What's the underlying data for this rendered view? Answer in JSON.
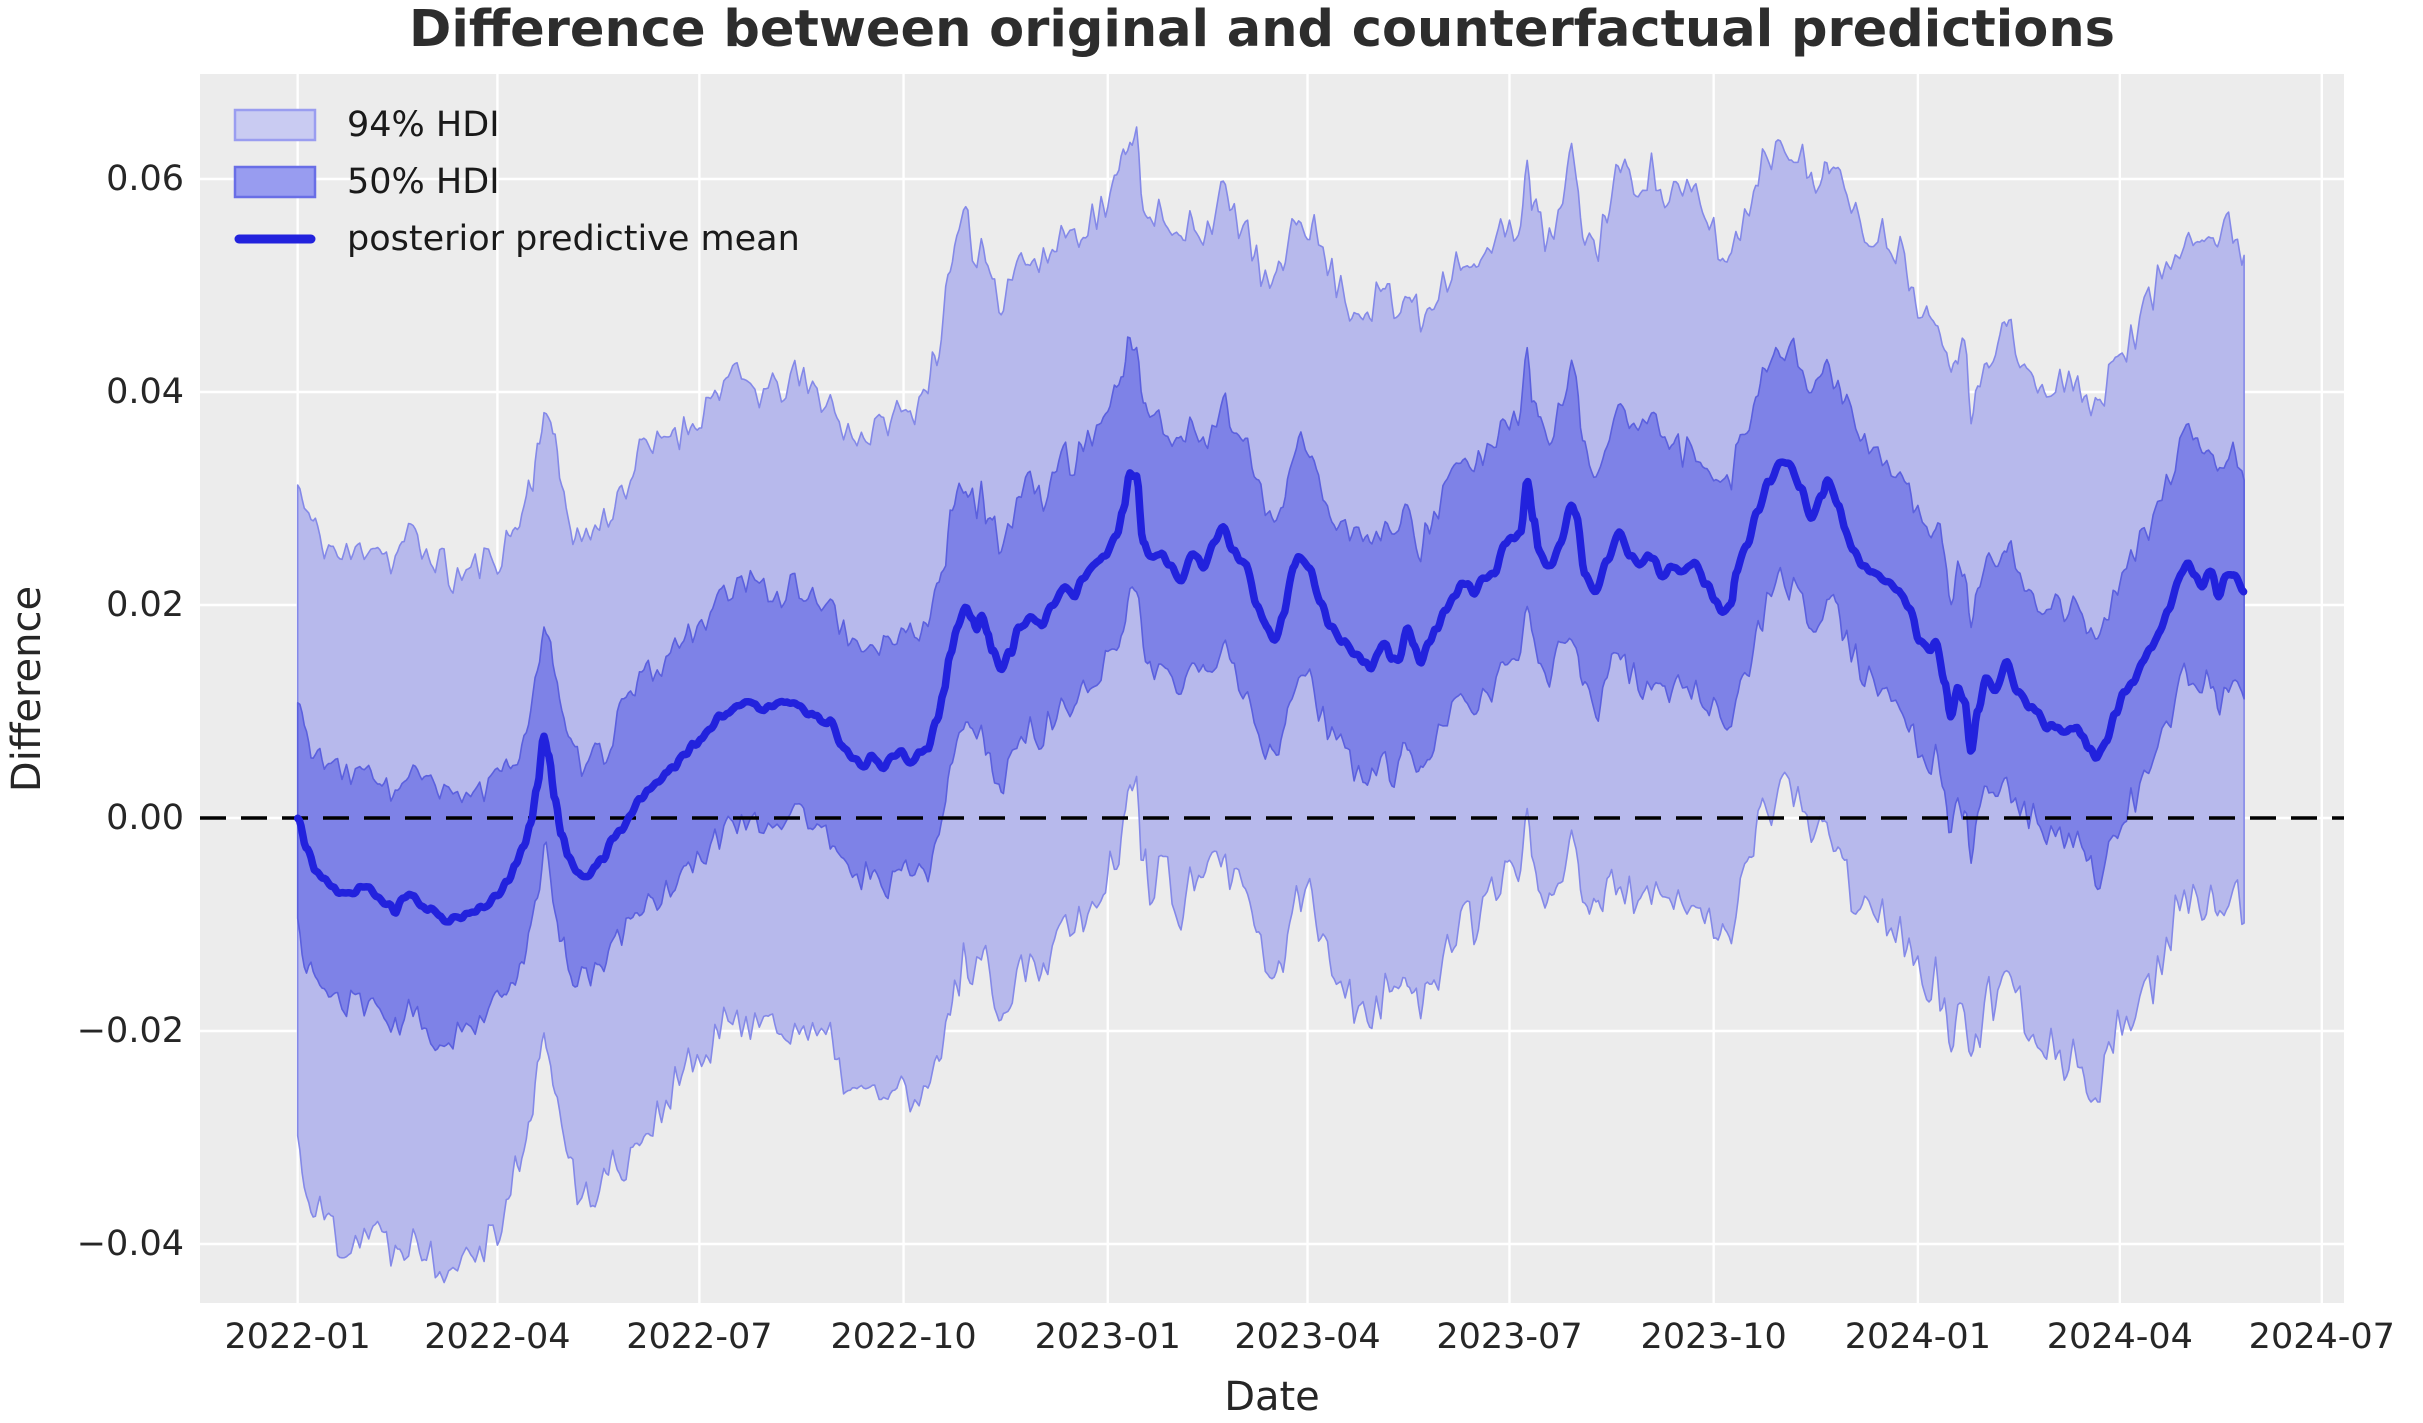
{
  "chart_data": {
    "type": "line",
    "title": "Difference between original and counterfactual predictions",
    "xlabel": "Date",
    "ylabel": "Difference",
    "legend": [
      {
        "label": "94% HDI",
        "type": "patch"
      },
      {
        "label": "50% HDI",
        "type": "patch"
      },
      {
        "label": "posterior predictive mean",
        "type": "line"
      }
    ],
    "legend_position": "upper left",
    "grid": true,
    "x_ticks": [
      {
        "label": "2022-01",
        "date": "2022-01-01"
      },
      {
        "label": "2022-04",
        "date": "2022-04-01"
      },
      {
        "label": "2022-07",
        "date": "2022-07-01"
      },
      {
        "label": "2022-10",
        "date": "2022-10-01"
      },
      {
        "label": "2023-01",
        "date": "2023-01-01"
      },
      {
        "label": "2023-04",
        "date": "2023-04-01"
      },
      {
        "label": "2023-07",
        "date": "2023-07-01"
      },
      {
        "label": "2023-10",
        "date": "2023-10-01"
      },
      {
        "label": "2024-01",
        "date": "2024-01-01"
      },
      {
        "label": "2024-04",
        "date": "2024-04-01"
      },
      {
        "label": "2024-07",
        "date": "2024-07-01"
      }
    ],
    "y_ticks": [
      {
        "label": "0.06",
        "value": 0.06
      },
      {
        "label": "0.04",
        "value": 0.04
      },
      {
        "label": "0.02",
        "value": 0.02
      },
      {
        "label": "0.00",
        "value": 0.0
      },
      {
        "label": "−0.02",
        "value": -0.02
      },
      {
        "label": "−0.04",
        "value": -0.04
      }
    ],
    "epoch": "2022-01-01",
    "data_day_range": [
      0,
      877
    ],
    "xlim_days": [
      -44,
      922
    ],
    "ylim": [
      -0.04554,
      0.06986
    ],
    "zero_line": {
      "y": 0,
      "style": "dashed",
      "color": "#000000"
    },
    "mean_points": [
      [
        0,
        0.0
      ],
      [
        4,
        -0.003
      ],
      [
        8,
        -0.0048
      ],
      [
        12,
        -0.0058
      ],
      [
        16,
        -0.0066
      ],
      [
        20,
        -0.0072
      ],
      [
        24,
        -0.007
      ],
      [
        28,
        -0.0064
      ],
      [
        32,
        -0.0063
      ],
      [
        36,
        -0.0072
      ],
      [
        40,
        -0.008
      ],
      [
        44,
        -0.0087
      ],
      [
        48,
        -0.0075
      ],
      [
        52,
        -0.0072
      ],
      [
        56,
        -0.0082
      ],
      [
        60,
        -0.0087
      ],
      [
        64,
        -0.0092
      ],
      [
        68,
        -0.0096
      ],
      [
        72,
        -0.0093
      ],
      [
        76,
        -0.009
      ],
      [
        80,
        -0.0087
      ],
      [
        85,
        -0.0083
      ],
      [
        90,
        -0.0072
      ],
      [
        94,
        -0.006
      ],
      [
        98,
        -0.0045
      ],
      [
        102,
        -0.0025
      ],
      [
        105,
        -0.0005
      ],
      [
        108,
        0.003
      ],
      [
        111,
        0.0076
      ],
      [
        113,
        0.006
      ],
      [
        116,
        0.002
      ],
      [
        119,
        -0.0015
      ],
      [
        122,
        -0.0037
      ],
      [
        126,
        -0.005
      ],
      [
        130,
        -0.0054
      ],
      [
        134,
        -0.0045
      ],
      [
        138,
        -0.0037
      ],
      [
        142,
        -0.002
      ],
      [
        146,
        -0.0008
      ],
      [
        150,
        0.0002
      ],
      [
        154,
        0.0015
      ],
      [
        158,
        0.0027
      ],
      [
        162,
        0.0033
      ],
      [
        166,
        0.004
      ],
      [
        170,
        0.0048
      ],
      [
        174,
        0.0056
      ],
      [
        178,
        0.0068
      ],
      [
        182,
        0.0076
      ],
      [
        186,
        0.0082
      ],
      [
        190,
        0.0094
      ],
      [
        194,
        0.01
      ],
      [
        198,
        0.0104
      ],
      [
        202,
        0.0107
      ],
      [
        206,
        0.0106
      ],
      [
        210,
        0.0104
      ],
      [
        214,
        0.0106
      ],
      [
        218,
        0.0108
      ],
      [
        222,
        0.011
      ],
      [
        226,
        0.0108
      ],
      [
        230,
        0.01
      ],
      [
        234,
        0.0094
      ],
      [
        240,
        0.0088
      ],
      [
        245,
        0.0068
      ],
      [
        250,
        0.0055
      ],
      [
        255,
        0.005
      ],
      [
        259,
        0.006
      ],
      [
        264,
        0.0046
      ],
      [
        268,
        0.0055
      ],
      [
        272,
        0.0062
      ],
      [
        276,
        0.0052
      ],
      [
        280,
        0.0058
      ],
      [
        284,
        0.0066
      ],
      [
        288,
        0.009
      ],
      [
        291,
        0.012
      ],
      [
        294,
        0.0155
      ],
      [
        297,
        0.018
      ],
      [
        301,
        0.0199
      ],
      [
        304,
        0.0185
      ],
      [
        306,
        0.0178
      ],
      [
        308,
        0.0192
      ],
      [
        311,
        0.0172
      ],
      [
        313,
        0.0155
      ],
      [
        317,
        0.0136
      ],
      [
        321,
        0.0155
      ],
      [
        325,
        0.0178
      ],
      [
        330,
        0.019
      ],
      [
        335,
        0.018
      ],
      [
        340,
        0.0199
      ],
      [
        345,
        0.0214
      ],
      [
        350,
        0.0208
      ],
      [
        354,
        0.0225
      ],
      [
        359,
        0.0237
      ],
      [
        364,
        0.0249
      ],
      [
        369,
        0.0266
      ],
      [
        372,
        0.029
      ],
      [
        375,
        0.0325
      ],
      [
        378,
        0.0318
      ],
      [
        381,
        0.026
      ],
      [
        384,
        0.0245
      ],
      [
        388,
        0.0249
      ],
      [
        393,
        0.0237
      ],
      [
        398,
        0.0225
      ],
      [
        403,
        0.0249
      ],
      [
        408,
        0.0237
      ],
      [
        413,
        0.026
      ],
      [
        417,
        0.0272
      ],
      [
        422,
        0.0249
      ],
      [
        427,
        0.0237
      ],
      [
        432,
        0.0202
      ],
      [
        437,
        0.0178
      ],
      [
        440,
        0.0168
      ],
      [
        444,
        0.019
      ],
      [
        449,
        0.0237
      ],
      [
        451,
        0.0246
      ],
      [
        456,
        0.0237
      ],
      [
        461,
        0.0202
      ],
      [
        466,
        0.0178
      ],
      [
        471,
        0.0166
      ],
      [
        476,
        0.0152
      ],
      [
        480,
        0.0148
      ],
      [
        483,
        0.014
      ],
      [
        487,
        0.0155
      ],
      [
        490,
        0.0166
      ],
      [
        493,
        0.015
      ],
      [
        496,
        0.0148
      ],
      [
        500,
        0.0178
      ],
      [
        503,
        0.0161
      ],
      [
        506,
        0.0146
      ],
      [
        510,
        0.0165
      ],
      [
        513,
        0.0178
      ],
      [
        517,
        0.0196
      ],
      [
        521,
        0.021
      ],
      [
        526,
        0.0219
      ],
      [
        530,
        0.021
      ],
      [
        534,
        0.0225
      ],
      [
        539,
        0.023
      ],
      [
        544,
        0.0254
      ],
      [
        548,
        0.0262
      ],
      [
        551,
        0.0268
      ],
      [
        554,
        0.0318
      ],
      [
        557,
        0.028
      ],
      [
        559,
        0.0254
      ],
      [
        564,
        0.0237
      ],
      [
        569,
        0.026
      ],
      [
        574,
        0.0295
      ],
      [
        576,
        0.0283
      ],
      [
        580,
        0.023
      ],
      [
        585,
        0.0213
      ],
      [
        590,
        0.0242
      ],
      [
        595,
        0.0268
      ],
      [
        600,
        0.0249
      ],
      [
        605,
        0.0237
      ],
      [
        610,
        0.0246
      ],
      [
        615,
        0.023
      ],
      [
        620,
        0.0239
      ],
      [
        624,
        0.023
      ],
      [
        629,
        0.0237
      ],
      [
        634,
        0.0222
      ],
      [
        639,
        0.0207
      ],
      [
        642,
        0.0193
      ],
      [
        646,
        0.02
      ],
      [
        648,
        0.023
      ],
      [
        653,
        0.0254
      ],
      [
        658,
        0.0289
      ],
      [
        663,
        0.0316
      ],
      [
        668,
        0.0335
      ],
      [
        673,
        0.033
      ],
      [
        677,
        0.0307
      ],
      [
        682,
        0.0283
      ],
      [
        687,
        0.0301
      ],
      [
        689,
        0.0316
      ],
      [
        694,
        0.0295
      ],
      [
        697,
        0.0272
      ],
      [
        701,
        0.0254
      ],
      [
        706,
        0.0237
      ],
      [
        711,
        0.023
      ],
      [
        716,
        0.0225
      ],
      [
        721,
        0.0215
      ],
      [
        726,
        0.0195
      ],
      [
        731,
        0.0168
      ],
      [
        735,
        0.0156
      ],
      [
        738,
        0.0164
      ],
      [
        742,
        0.0131
      ],
      [
        745,
        0.0096
      ],
      [
        748,
        0.012
      ],
      [
        751,
        0.0112
      ],
      [
        754,
        0.0062
      ],
      [
        757,
        0.01
      ],
      [
        761,
        0.013
      ],
      [
        765,
        0.0119
      ],
      [
        770,
        0.0146
      ],
      [
        775,
        0.0119
      ],
      [
        780,
        0.0105
      ],
      [
        784,
        0.0096
      ],
      [
        788,
        0.0086
      ],
      [
        792,
        0.0088
      ],
      [
        796,
        0.0079
      ],
      [
        800,
        0.0086
      ],
      [
        804,
        0.0079
      ],
      [
        807,
        0.0063
      ],
      [
        811,
        0.0056
      ],
      [
        815,
        0.0072
      ],
      [
        819,
        0.01
      ],
      [
        823,
        0.0118
      ],
      [
        827,
        0.0126
      ],
      [
        831,
        0.0146
      ],
      [
        835,
        0.0158
      ],
      [
        839,
        0.0177
      ],
      [
        843,
        0.0196
      ],
      [
        847,
        0.0222
      ],
      [
        851,
        0.0238
      ],
      [
        855,
        0.0229
      ],
      [
        858,
        0.0219
      ],
      [
        862,
        0.0236
      ],
      [
        865,
        0.021
      ],
      [
        869,
        0.0227
      ],
      [
        873,
        0.0229
      ],
      [
        877,
        0.0211
      ]
    ],
    "hdi94": {
      "upper_offsets": [
        [
          0,
          0.031
        ],
        [
          45,
          0.033
        ],
        [
          111,
          0.032
        ],
        [
          160,
          0.032
        ],
        [
          215,
          0.0295
        ],
        [
          260,
          0.031
        ],
        [
          300,
          0.036
        ],
        [
          330,
          0.034
        ],
        [
          365,
          0.033
        ],
        [
          400,
          0.031
        ],
        [
          440,
          0.033
        ],
        [
          483,
          0.033
        ],
        [
          520,
          0.031
        ],
        [
          554,
          0.029
        ],
        [
          580,
          0.032
        ],
        [
          605,
          0.0365
        ],
        [
          640,
          0.033
        ],
        [
          668,
          0.031
        ],
        [
          700,
          0.031
        ],
        [
          730,
          0.032
        ],
        [
          770,
          0.031
        ],
        [
          811,
          0.033
        ],
        [
          843,
          0.032
        ],
        [
          877,
          0.032
        ]
      ],
      "lower_offsets": [
        [
          0,
          0.031
        ],
        [
          45,
          0.033
        ],
        [
          75,
          0.032
        ],
        [
          111,
          0.027
        ],
        [
          140,
          0.031
        ],
        [
          180,
          0.03
        ],
        [
          215,
          0.03
        ],
        [
          255,
          0.031
        ],
        [
          300,
          0.033
        ],
        [
          340,
          0.031
        ],
        [
          375,
          0.03
        ],
        [
          420,
          0.031
        ],
        [
          460,
          0.032
        ],
        [
          500,
          0.032
        ],
        [
          554,
          0.031
        ],
        [
          600,
          0.032
        ],
        [
          640,
          0.031
        ],
        [
          668,
          0.03
        ],
        [
          700,
          0.032
        ],
        [
          745,
          0.03
        ],
        [
          790,
          0.03
        ],
        [
          830,
          0.031
        ],
        [
          877,
          0.031
        ]
      ]
    },
    "hdi50": {
      "upper_offsets": [
        [
          0,
          0.0105
        ],
        [
          60,
          0.0115
        ],
        [
          111,
          0.0105
        ],
        [
          180,
          0.0105
        ],
        [
          240,
          0.011
        ],
        [
          300,
          0.0115
        ],
        [
          365,
          0.013
        ],
        [
          440,
          0.011
        ],
        [
          500,
          0.011
        ],
        [
          554,
          0.0115
        ],
        [
          605,
          0.012
        ],
        [
          668,
          0.0115
        ],
        [
          730,
          0.011
        ],
        [
          800,
          0.011
        ],
        [
          877,
          0.0115
        ]
      ],
      "lower_offsets": [
        [
          0,
          0.0105
        ],
        [
          60,
          0.0115
        ],
        [
          111,
          0.01
        ],
        [
          180,
          0.0105
        ],
        [
          240,
          0.011
        ],
        [
          300,
          0.011
        ],
        [
          365,
          0.0105
        ],
        [
          440,
          0.011
        ],
        [
          500,
          0.0105
        ],
        [
          554,
          0.011
        ],
        [
          605,
          0.0115
        ],
        [
          668,
          0.011
        ],
        [
          730,
          0.0105
        ],
        [
          800,
          0.0105
        ],
        [
          877,
          0.0105
        ]
      ]
    },
    "edge_noise": {
      "seed_hdi94_upper": 11,
      "seed_hdi94_lower": 22,
      "seed_hdi50_upper": 33,
      "seed_hdi50_lower": 44,
      "seed_mean": 55,
      "knot_days_fast": 2,
      "knot_days_slow": 7,
      "amp_hdi94_upper": 0.0028,
      "amp_hdi94_lower": 0.0032,
      "amp_hdi50": 0.0021,
      "amp_mean": 0.00045
    }
  },
  "colors": {
    "figure_background": "#ffffff",
    "plot_background": "#ececec",
    "gridline": "#ffffff",
    "hdi94_fill": "#b7b9ec",
    "hdi94_edge": "#8489e8",
    "hdi50_fill": "#7e82e7",
    "hdi50_edge": "#5b60de",
    "mean_line": "#2222dd",
    "zero_line": "#000000",
    "legend94_fill": "#c9cbf2",
    "legend94_edge": "#9a9df0",
    "legend50_fill": "#989cf0",
    "legend50_edge": "#696ee6",
    "text": "#262626",
    "title_text": "#2d2d2d"
  }
}
